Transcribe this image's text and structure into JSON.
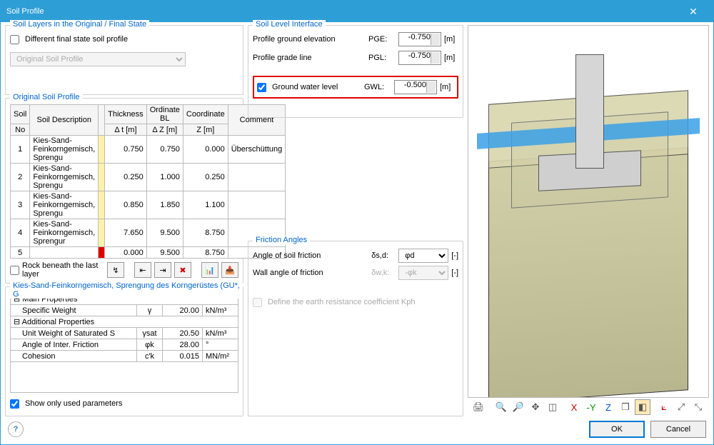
{
  "window": {
    "title": "Soil Profile"
  },
  "soilLayers": {
    "groupTitle": "Soil Layers in the Original / Final State",
    "diffFinalLabel": "Different final state soil profile",
    "diffFinalChecked": false,
    "profileSelect": "Original Soil Profile"
  },
  "soilLevel": {
    "groupTitle": "Soil Level Interface",
    "pge": {
      "label": "Profile ground elevation",
      "abbr": "PGE:",
      "value": "-0.750",
      "unit": "[m]"
    },
    "pgl": {
      "label": "Profile grade line",
      "abbr": "PGL:",
      "value": "-0.750",
      "unit": "[m]"
    },
    "gwl": {
      "label": "Ground water level",
      "abbr": "GWL:",
      "value": "-0.500",
      "unit": "[m]",
      "checked": true
    }
  },
  "origProfile": {
    "groupTitle": "Original Soil Profile",
    "headers": {
      "no1": "Soil",
      "no2": "No",
      "desc": "Soil Description",
      "thick1": "Thickness",
      "thick2": "Δ t [m]",
      "ord1": "Ordinate BL",
      "ord2": "Δ Z [m]",
      "coord1": "Coordinate",
      "coord2": "Z [m]",
      "comment": "Comment"
    },
    "rows": [
      {
        "no": "1",
        "desc": "Kies-Sand-Feinkorngemisch, Sprengu",
        "t": "0.750",
        "dz": "0.750",
        "z": "0.000",
        "c": "Überschüttung",
        "mark": "yellow"
      },
      {
        "no": "2",
        "desc": "Kies-Sand-Feinkorngemisch, Sprengu",
        "t": "0.250",
        "dz": "1.000",
        "z": "0.250",
        "c": "",
        "mark": "yellow"
      },
      {
        "no": "3",
        "desc": "Kies-Sand-Feinkorngemisch, Sprengu",
        "t": "0.850",
        "dz": "1.850",
        "z": "1.100",
        "c": "",
        "mark": "yellow"
      },
      {
        "no": "4",
        "desc": "Kies-Sand-Feinkorngemisch, Sprengur",
        "t": "7.650",
        "dz": "9.500",
        "z": "8.750",
        "c": "",
        "mark": "yellow"
      },
      {
        "no": "5",
        "desc": "",
        "t": "0.000",
        "dz": "9.500",
        "z": "8.750",
        "c": "",
        "mark": "red"
      }
    ],
    "rockLabel": "Rock beneath the last layer",
    "rockChecked": false
  },
  "material": {
    "groupTitle": "Kies-Sand-Feinkorngemisch, Sprengung des Korngerüstes (GU*, G",
    "mainHdr": "Main Properties",
    "addlHdr": "Additional Properties",
    "rows": {
      "specWeight": {
        "label": "Specific Weight",
        "sym": "γ",
        "val": "20.00",
        "unit": "kN/m³"
      },
      "satWeight": {
        "label": "Unit Weight of Saturated S",
        "sym": "γsat",
        "val": "20.50",
        "unit": "kN/m³"
      },
      "intFric": {
        "label": "Angle of Inter. Friction",
        "sym": "φk",
        "val": "28.00",
        "unit": "°"
      },
      "cohesion": {
        "label": "Cohesion",
        "sym": "c'k",
        "val": "0.015",
        "unit": "MN/m²"
      }
    },
    "showOnlyLabel": "Show only used parameters",
    "showOnlyChecked": true
  },
  "friction": {
    "groupTitle": "Friction Angles",
    "soil": {
      "label": "Angle of soil friction",
      "sym": "δs,d:",
      "value": "φd",
      "unit": "[-]"
    },
    "wall": {
      "label": "Wall angle of friction",
      "sym": "δw,k:",
      "value": "-φk",
      "unit": "[-]"
    },
    "kphLabel": "Define the earth resistance coefficient Kph"
  },
  "footer": {
    "ok": "OK",
    "cancel": "Cancel"
  },
  "icons": {
    "tb1": "↯",
    "tb2": "⇤",
    "tb3": "⇥",
    "tb4": "✖",
    "tb5": "📊",
    "tb6": "📥",
    "v_print": "🖨",
    "v_zoomwin": "🔍",
    "v_zoom": "🔎",
    "v_pan": "✥",
    "v_iso": "◫",
    "v_x": "X",
    "v_y": "-Y",
    "v_z": "Z",
    "v_box": "❒",
    "v_render": "◧",
    "v_axes": "⟀",
    "v_full": "⤢",
    "v_fit": "⤡"
  },
  "colors": {
    "titlebar": "#2e9ed6",
    "link": "#0066cc",
    "highlight": "#e00000"
  }
}
